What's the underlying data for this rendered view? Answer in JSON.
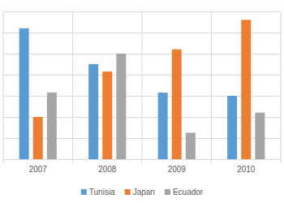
{
  "chart_data": {
    "type": "bar",
    "categories": [
      "2007",
      "2008",
      "2009",
      "2010"
    ],
    "series": [
      {
        "name": "Tunisia",
        "color": "#5b9bd5",
        "values": [
          6.2,
          4.5,
          3.15,
          3.0
        ]
      },
      {
        "name": "Japan",
        "color": "#ed7d31",
        "values": [
          2.0,
          4.15,
          5.2,
          6.6
        ]
      },
      {
        "name": "Ecuador",
        "color": "#a5a5a5",
        "values": [
          3.15,
          5.0,
          1.25,
          2.2
        ]
      }
    ],
    "ylim": [
      0,
      7
    ],
    "yticks": [
      0,
      1,
      2,
      3,
      4,
      5,
      6,
      7
    ],
    "grid": true,
    "legend": "bottom",
    "tick_labels": "x"
  }
}
